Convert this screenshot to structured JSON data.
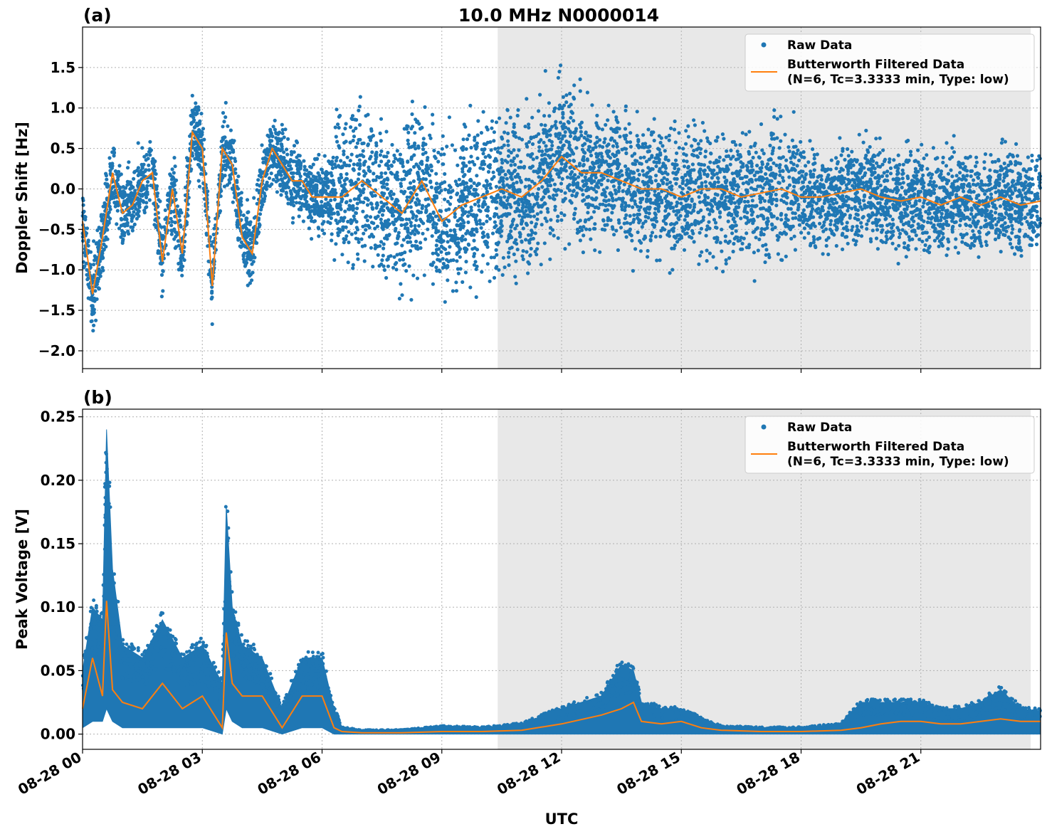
{
  "title": "10.0 MHz N0000014",
  "xlabel": "UTC",
  "x_ticks": [
    "08-28 00",
    "08-28 03",
    "08-28 06",
    "08-28 09",
    "08-28 12",
    "08-28 15",
    "08-28 18",
    "08-28 21"
  ],
  "colors": {
    "raw": "#1f77b4",
    "filtered": "#ff7f0e",
    "shade": "#e8e8e8",
    "grid": "#b0b0b0"
  },
  "chart_data": [
    {
      "type": "scatter",
      "panel_label": "(a)",
      "ylabel": "Doppler Shift [Hz]",
      "xlim_hours": [
        0,
        24
      ],
      "ylim": [
        -2.22,
        2.0
      ],
      "y_ticks": [
        "1.5",
        "1.0",
        "0.5",
        "0.0",
        "−0.5",
        "−1.0",
        "−1.5",
        "−2.0"
      ],
      "y_tick_values": [
        1.5,
        1.0,
        0.5,
        0.0,
        -0.5,
        -1.0,
        -1.5,
        -2.0
      ],
      "shaded_interval_hours": [
        10.4,
        23.75
      ],
      "grid": true,
      "legend_position": "upper-right",
      "legend": [
        "Raw Data",
        "Butterworth Filtered Data",
        "(N=6, Tc=3.3333 min, Type: low)"
      ],
      "series": [
        {
          "name": "Butterworth Filtered Data",
          "kind": "line",
          "x_hours": [
            0,
            0.25,
            0.5,
            0.75,
            1.0,
            1.25,
            1.5,
            1.75,
            2.0,
            2.25,
            2.5,
            2.75,
            3.0,
            3.25,
            3.5,
            3.75,
            4.0,
            4.25,
            4.5,
            4.75,
            5.0,
            5.25,
            5.5,
            5.75,
            6.0,
            6.5,
            7.0,
            7.5,
            8.0,
            8.5,
            9.0,
            9.5,
            10.0,
            10.5,
            11.0,
            11.5,
            12.0,
            12.5,
            13.0,
            13.5,
            14.0,
            14.5,
            15.0,
            15.5,
            16.0,
            16.5,
            17.0,
            17.5,
            18.0,
            18.5,
            19.0,
            19.5,
            20.0,
            20.5,
            21.0,
            21.5,
            22.0,
            22.5,
            23.0,
            23.5,
            24.0
          ],
          "y": [
            -0.4,
            -1.3,
            -0.6,
            0.2,
            -0.3,
            -0.2,
            0.1,
            0.2,
            -0.9,
            0.0,
            -0.8,
            0.7,
            0.5,
            -1.2,
            0.5,
            0.3,
            -0.6,
            -0.8,
            0.1,
            0.5,
            0.3,
            0.1,
            0.1,
            -0.1,
            -0.1,
            -0.1,
            0.1,
            -0.1,
            -0.3,
            0.1,
            -0.4,
            -0.2,
            -0.1,
            0.0,
            -0.1,
            0.1,
            0.4,
            0.2,
            0.2,
            0.1,
            0.0,
            0.0,
            -0.1,
            0.0,
            0.0,
            -0.1,
            -0.05,
            0.0,
            -0.1,
            -0.1,
            -0.05,
            0.0,
            -0.1,
            -0.15,
            -0.1,
            -0.2,
            -0.1,
            -0.2,
            -0.1,
            -0.2,
            -0.15
          ]
        }
      ]
    },
    {
      "type": "scatter",
      "panel_label": "(b)",
      "ylabel": "Peak Voltage [V]",
      "xlim_hours": [
        0,
        24
      ],
      "ylim": [
        -0.012,
        0.256
      ],
      "y_ticks": [
        "0.25",
        "0.20",
        "0.15",
        "0.10",
        "0.05",
        "0.00"
      ],
      "y_tick_values": [
        0.25,
        0.2,
        0.15,
        0.1,
        0.05,
        0.0
      ],
      "shaded_interval_hours": [
        10.4,
        23.75
      ],
      "grid": true,
      "legend_position": "upper-right",
      "legend": [
        "Raw Data",
        "Butterworth Filtered Data",
        "(N=6, Tc=3.3333 min, Type: low)"
      ],
      "series": [
        {
          "name": "Butterworth Filtered Data",
          "kind": "line",
          "x_hours": [
            0,
            0.25,
            0.5,
            0.6,
            0.75,
            1.0,
            1.5,
            2.0,
            2.5,
            3.0,
            3.5,
            3.6,
            3.75,
            4.0,
            4.5,
            5.0,
            5.5,
            6.0,
            6.3,
            6.5,
            7.0,
            8.0,
            9.0,
            10.0,
            11.0,
            12.0,
            13.0,
            13.5,
            13.8,
            14.0,
            14.5,
            15.0,
            15.5,
            16.0,
            17.0,
            18.0,
            19.0,
            19.5,
            20.0,
            20.5,
            21.0,
            21.5,
            22.0,
            22.5,
            23.0,
            23.5,
            24.0
          ],
          "y": [
            0.02,
            0.06,
            0.03,
            0.105,
            0.035,
            0.025,
            0.02,
            0.04,
            0.02,
            0.03,
            0.005,
            0.08,
            0.04,
            0.03,
            0.03,
            0.005,
            0.03,
            0.03,
            0.005,
            0.002,
            0.001,
            0.001,
            0.002,
            0.002,
            0.003,
            0.008,
            0.015,
            0.02,
            0.025,
            0.01,
            0.008,
            0.01,
            0.005,
            0.003,
            0.002,
            0.002,
            0.003,
            0.005,
            0.008,
            0.01,
            0.01,
            0.008,
            0.008,
            0.01,
            0.012,
            0.01,
            0.01
          ]
        },
        {
          "name": "Raw Data",
          "kind": "scatter-envelope",
          "x_hours": [
            0,
            0.25,
            0.5,
            0.6,
            0.75,
            1.0,
            1.5,
            2.0,
            2.5,
            3.0,
            3.5,
            3.6,
            3.75,
            4.0,
            4.5,
            5.0,
            5.5,
            6.0,
            6.3,
            6.5,
            7.0,
            8.0,
            9.0,
            10.0,
            11.0,
            12.0,
            13.0,
            13.5,
            13.8,
            14.0,
            14.5,
            15.0,
            15.5,
            16.0,
            17.0,
            18.0,
            19.0,
            19.5,
            20.0,
            20.5,
            21.0,
            21.5,
            22.0,
            22.5,
            23.0,
            23.5,
            24.0
          ],
          "y_low": [
            0.005,
            0.01,
            0.01,
            0.02,
            0.01,
            0.005,
            0.005,
            0.005,
            0.005,
            0.005,
            0.0,
            0.02,
            0.01,
            0.005,
            0.005,
            0.0,
            0.005,
            0.005,
            0.0,
            0.0,
            0.0,
            0.0,
            0.0,
            0.0,
            0.0,
            0.0,
            0.0,
            0.0,
            0.0,
            0.0,
            0.0,
            0.0,
            0.0,
            0.0,
            0.0,
            0.0,
            0.0,
            0.0,
            0.0,
            0.0,
            0.0,
            0.0,
            0.0,
            0.0,
            0.0,
            0.0,
            0.0
          ],
          "y_high": [
            0.05,
            0.1,
            0.09,
            0.24,
            0.13,
            0.07,
            0.06,
            0.09,
            0.06,
            0.07,
            0.04,
            0.18,
            0.1,
            0.07,
            0.06,
            0.02,
            0.06,
            0.06,
            0.02,
            0.005,
            0.003,
            0.003,
            0.006,
            0.005,
            0.008,
            0.02,
            0.03,
            0.055,
            0.05,
            0.025,
            0.02,
            0.02,
            0.012,
            0.006,
            0.005,
            0.005,
            0.008,
            0.025,
            0.025,
            0.025,
            0.025,
            0.02,
            0.02,
            0.025,
            0.035,
            0.02,
            0.018
          ]
        }
      ]
    }
  ]
}
